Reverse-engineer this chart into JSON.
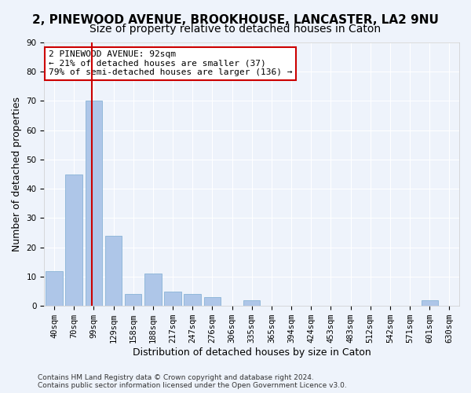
{
  "title1": "2, PINEWOOD AVENUE, BROOKHOUSE, LANCASTER, LA2 9NU",
  "title2": "Size of property relative to detached houses in Caton",
  "xlabel": "Distribution of detached houses by size in Caton",
  "ylabel": "Number of detached properties",
  "bar_categories": [
    "40sqm",
    "70sqm",
    "99sqm",
    "129sqm",
    "158sqm",
    "188sqm",
    "217sqm",
    "247sqm",
    "276sqm",
    "306sqm",
    "335sqm",
    "365sqm",
    "394sqm",
    "424sqm",
    "453sqm",
    "483sqm",
    "512sqm",
    "542sqm",
    "571sqm",
    "601sqm",
    "630sqm"
  ],
  "bar_values": [
    12,
    45,
    70,
    24,
    4,
    11,
    5,
    4,
    3,
    0,
    2,
    0,
    0,
    0,
    0,
    0,
    0,
    0,
    0,
    2,
    0
  ],
  "bar_color": "#aec6e8",
  "bar_edge_color": "#7aaad0",
  "vline_x": 1.925,
  "vline_color": "#cc0000",
  "annotation_text": "2 PINEWOOD AVENUE: 92sqm\n← 21% of detached houses are smaller (37)\n79% of semi-detached houses are larger (136) →",
  "annotation_box_color": "#ffffff",
  "annotation_box_edge_color": "#cc0000",
  "ylim": [
    0,
    90
  ],
  "yticks": [
    0,
    10,
    20,
    30,
    40,
    50,
    60,
    70,
    80,
    90
  ],
  "footer_text": "Contains HM Land Registry data © Crown copyright and database right 2024.\nContains public sector information licensed under the Open Government Licence v3.0.",
  "bg_color": "#eef3fb",
  "plot_bg_color": "#eef3fb",
  "grid_color": "#ffffff",
  "title1_fontsize": 11,
  "title2_fontsize": 10,
  "tick_fontsize": 7.5,
  "ylabel_fontsize": 9,
  "xlabel_fontsize": 9
}
